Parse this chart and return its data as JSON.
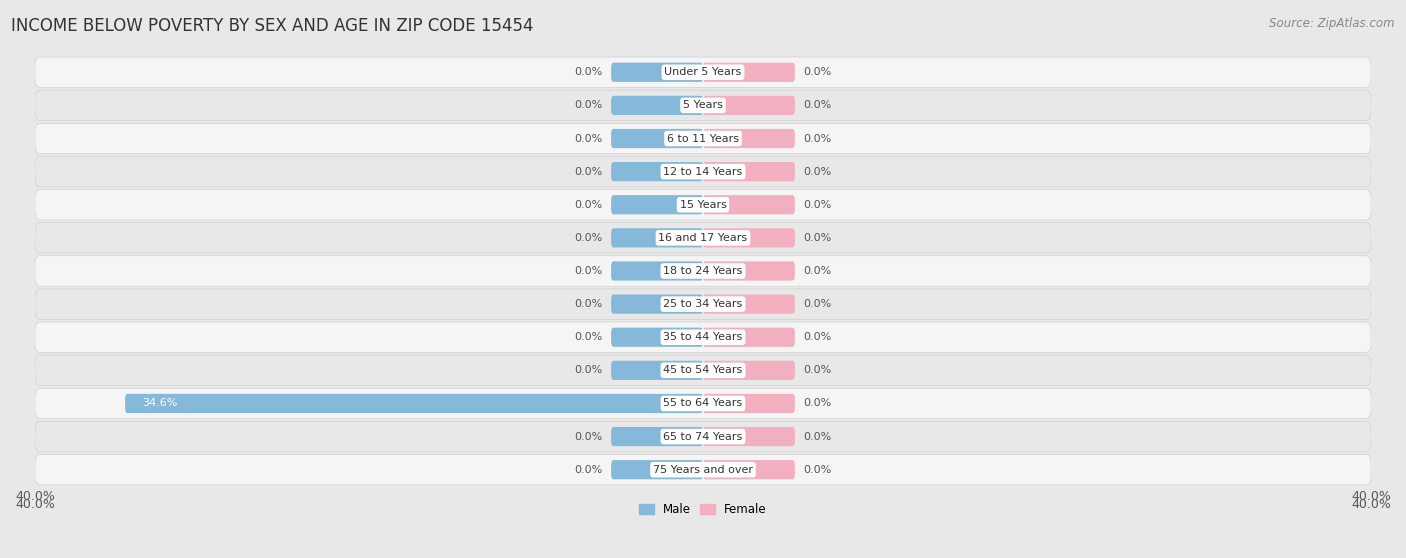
{
  "title": "INCOME BELOW POVERTY BY SEX AND AGE IN ZIP CODE 15454",
  "source": "Source: ZipAtlas.com",
  "categories": [
    "Under 5 Years",
    "5 Years",
    "6 to 11 Years",
    "12 to 14 Years",
    "15 Years",
    "16 and 17 Years",
    "18 to 24 Years",
    "25 to 34 Years",
    "35 to 44 Years",
    "45 to 54 Years",
    "55 to 64 Years",
    "65 to 74 Years",
    "75 Years and over"
  ],
  "male_values": [
    0.0,
    0.0,
    0.0,
    0.0,
    0.0,
    0.0,
    0.0,
    0.0,
    0.0,
    0.0,
    34.6,
    0.0,
    0.0
  ],
  "female_values": [
    0.0,
    0.0,
    0.0,
    0.0,
    0.0,
    0.0,
    0.0,
    0.0,
    0.0,
    0.0,
    0.0,
    0.0,
    0.0
  ],
  "male_color": "#85b8d9",
  "female_color": "#f2afc0",
  "male_label": "Male",
  "female_label": "Female",
  "xlim": 40.0,
  "bar_height": 0.58,
  "min_bar_width": 5.5,
  "row_colors": [
    "#f5f5f5",
    "#e8e8e8"
  ],
  "row_border_color": "#d0d0d0",
  "title_fontsize": 12,
  "source_fontsize": 8.5,
  "label_fontsize": 8,
  "category_fontsize": 8,
  "axis_label_fontsize": 9,
  "fig_bg": "#e8e8e8"
}
